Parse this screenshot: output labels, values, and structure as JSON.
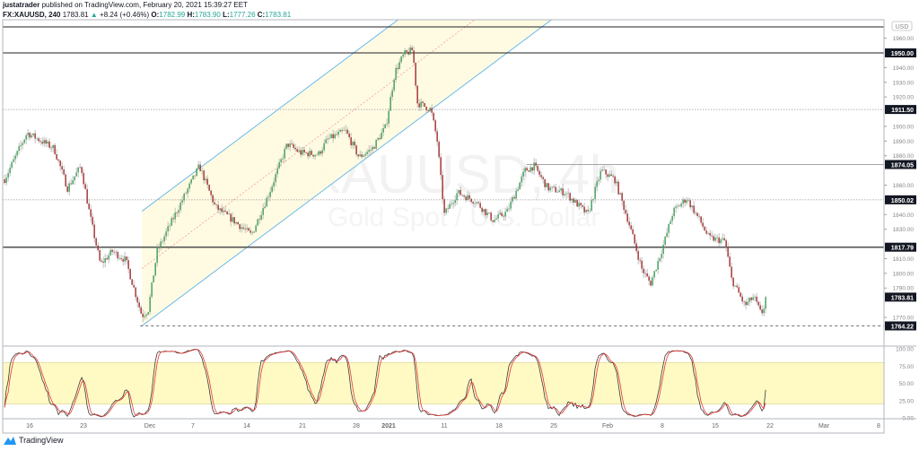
{
  "header": {
    "publisher": "justatrader",
    "published_text": "published on TradingView.com, February 20, 2021 15:39:27 EET",
    "symbol": "FX:XAUUSD, 240",
    "last": "1783.81",
    "change": "+8.24 (+0.46%)",
    "o_label": "O:",
    "o": "1782.99",
    "h_label": "H:",
    "h": "1783.90",
    "l_label": "L:",
    "l": "1777.26",
    "c_label": "C:",
    "c": "1783.81"
  },
  "watermark": {
    "line1": "XAUUSD, 4h",
    "line2": "Gold Spot / U.S. Dollar"
  },
  "currency_badge": "USD",
  "footer": {
    "brand": "TradingView"
  },
  "colors": {
    "up": "#3c9a55",
    "down": "#9e2a2b",
    "wick": "#a8a8a8",
    "channel": "#5fb3e8",
    "channel_fill": "#fffbe0",
    "stoch_k": "#3a3a3a",
    "stoch_d": "#e53935",
    "stoch_band": "#fff9c4",
    "accent": "#26a69a"
  },
  "chart_data": {
    "type": "candlestick",
    "timeframe": "240",
    "ylim": [
      1757,
      1968
    ],
    "price_ticks": [
      1960,
      1950,
      1940,
      1930,
      1920,
      1910,
      1900,
      1890,
      1880,
      1870,
      1860,
      1850,
      1840,
      1830,
      1820,
      1810,
      1800,
      1790,
      1780,
      1770,
      1760
    ],
    "time_ticks": [
      {
        "label": "16",
        "date": "2020-11-16"
      },
      {
        "label": "23",
        "date": "2020-11-23"
      },
      {
        "label": "Dec",
        "date": "2020-12-01"
      },
      {
        "label": "7",
        "date": "2020-12-07"
      },
      {
        "label": "14",
        "date": "2020-12-14"
      },
      {
        "label": "21",
        "date": "2020-12-21"
      },
      {
        "label": "28",
        "date": "2020-12-28"
      },
      {
        "label": "2021",
        "date": "2021-01-01"
      },
      {
        "label": "11",
        "date": "2021-01-11"
      },
      {
        "label": "18",
        "date": "2021-01-18"
      },
      {
        "label": "25",
        "date": "2021-01-25"
      },
      {
        "label": "Feb",
        "date": "2021-02-01"
      },
      {
        "label": "8",
        "date": "2021-02-08"
      },
      {
        "label": "15",
        "date": "2021-02-15"
      },
      {
        "label": "22",
        "date": "2021-02-22"
      },
      {
        "label": "Mar",
        "date": "2021-03-01"
      },
      {
        "label": "8",
        "date": "2021-03-08"
      }
    ],
    "price_path": [
      [
        "2020-11-12T18",
        1864
      ],
      [
        "2020-11-15T16",
        1895.7
      ],
      [
        "2020-11-19T04",
        1885
      ],
      [
        "2020-11-20T22",
        1858
      ],
      [
        "2020-11-22T16",
        1873
      ],
      [
        "2020-11-23T18",
        1840
      ],
      [
        "2020-11-25T01",
        1806
      ],
      [
        "2020-11-26T11",
        1815
      ],
      [
        "2020-11-28T02",
        1809
      ],
      [
        "2020-11-29T04",
        1788
      ],
      [
        "2020-11-30T01",
        1771
      ],
      [
        "2020-11-30T19",
        1775
      ],
      [
        "2020-12-02T00",
        1815
      ],
      [
        "2020-12-04T12",
        1840
      ],
      [
        "2020-12-07T20",
        1873
      ],
      [
        "2020-12-09T22",
        1845
      ],
      [
        "2020-12-12T06",
        1836
      ],
      [
        "2020-12-14T14",
        1826
      ],
      [
        "2020-12-16T20",
        1855
      ],
      [
        "2020-12-19T02",
        1888
      ],
      [
        "2020-12-20T18",
        1882
      ],
      [
        "2020-12-23T02",
        1881
      ],
      [
        "2020-12-24T06",
        1891
      ],
      [
        "2020-12-26T14",
        1897
      ],
      [
        "2020-12-28T08",
        1879
      ],
      [
        "2020-12-30T00",
        1885
      ],
      [
        "2020-12-31T16",
        1900
      ],
      [
        "2021-01-02T03",
        1937
      ],
      [
        "2021-01-03T18",
        1949
      ],
      [
        "2021-01-05T08",
        1952
      ],
      [
        "2021-01-06T04",
        1916
      ],
      [
        "2021-01-08T14",
        1911.5
      ],
      [
        "2021-01-09T17",
        1891
      ],
      [
        "2021-01-11T00",
        1840
      ],
      [
        "2021-01-12T17",
        1855
      ],
      [
        "2021-01-15T00",
        1849
      ],
      [
        "2021-01-17T07",
        1836
      ],
      [
        "2021-01-19T01",
        1842
      ],
      [
        "2021-01-21T08",
        1870
      ],
      [
        "2021-01-22T12",
        1873
      ],
      [
        "2021-01-24T05",
        1858
      ],
      [
        "2021-01-26T12",
        1855
      ],
      [
        "2021-01-29T10",
        1840
      ],
      [
        "2021-01-31T04",
        1870
      ],
      [
        "2021-02-01T22",
        1864
      ],
      [
        "2021-02-03T15",
        1836
      ],
      [
        "2021-02-05T09",
        1803
      ],
      [
        "2021-02-06T12",
        1793
      ],
      [
        "2021-02-08T06",
        1821
      ],
      [
        "2021-02-09T10",
        1842
      ],
      [
        "2021-02-11T05",
        1851
      ],
      [
        "2021-02-12T23",
        1836
      ],
      [
        "2021-02-14T04",
        1824
      ],
      [
        "2021-02-16T06",
        1822
      ],
      [
        "2021-02-17T02",
        1796
      ],
      [
        "2021-02-18T19",
        1778
      ],
      [
        "2021-02-19T22",
        1784
      ],
      [
        "2021-02-20T21",
        1772
      ],
      [
        "2021-02-21T16",
        1783.81
      ]
    ],
    "last_price": {
      "value": 1783.81,
      "label": "1783.81"
    },
    "horizontal_levels": [
      {
        "price": 1967.7,
        "style": "solid",
        "label": ""
      },
      {
        "price": 1950.0,
        "style": "solid",
        "label": "1950.00"
      },
      {
        "price": 1911.5,
        "style": "dotted",
        "label": "1911.50"
      },
      {
        "price": 1874.05,
        "style": "ray",
        "from": "2021-01-21T12",
        "label": "1874.05"
      },
      {
        "price": 1850.02,
        "style": "dotted",
        "label": "1850.02"
      },
      {
        "price": 1817.79,
        "style": "thick",
        "label": "1817.79"
      },
      {
        "price": 1764.22,
        "style": "dashed",
        "from": "2020-11-29T20",
        "label": "1764.22"
      }
    ],
    "parallel_channel": {
      "start": {
        "date": "2020-11-30T01",
        "price": 1764.22
      },
      "end": {
        "date": "2021-01-24T17",
        "price": 1972.6
      },
      "upper_offset": 78
    },
    "indicator": {
      "type": "stochastic",
      "k_period": 14,
      "smooth_k": 3,
      "d_period": 3,
      "band": [
        20,
        80
      ],
      "ticks": [
        {
          "v": 100,
          "label": "100.00"
        },
        {
          "v": 75,
          "label": "75.00"
        },
        {
          "v": 50,
          "label": "50.00"
        },
        {
          "v": 25,
          "label": "25.00"
        },
        {
          "v": 0,
          "label": "0.00"
        }
      ]
    }
  }
}
